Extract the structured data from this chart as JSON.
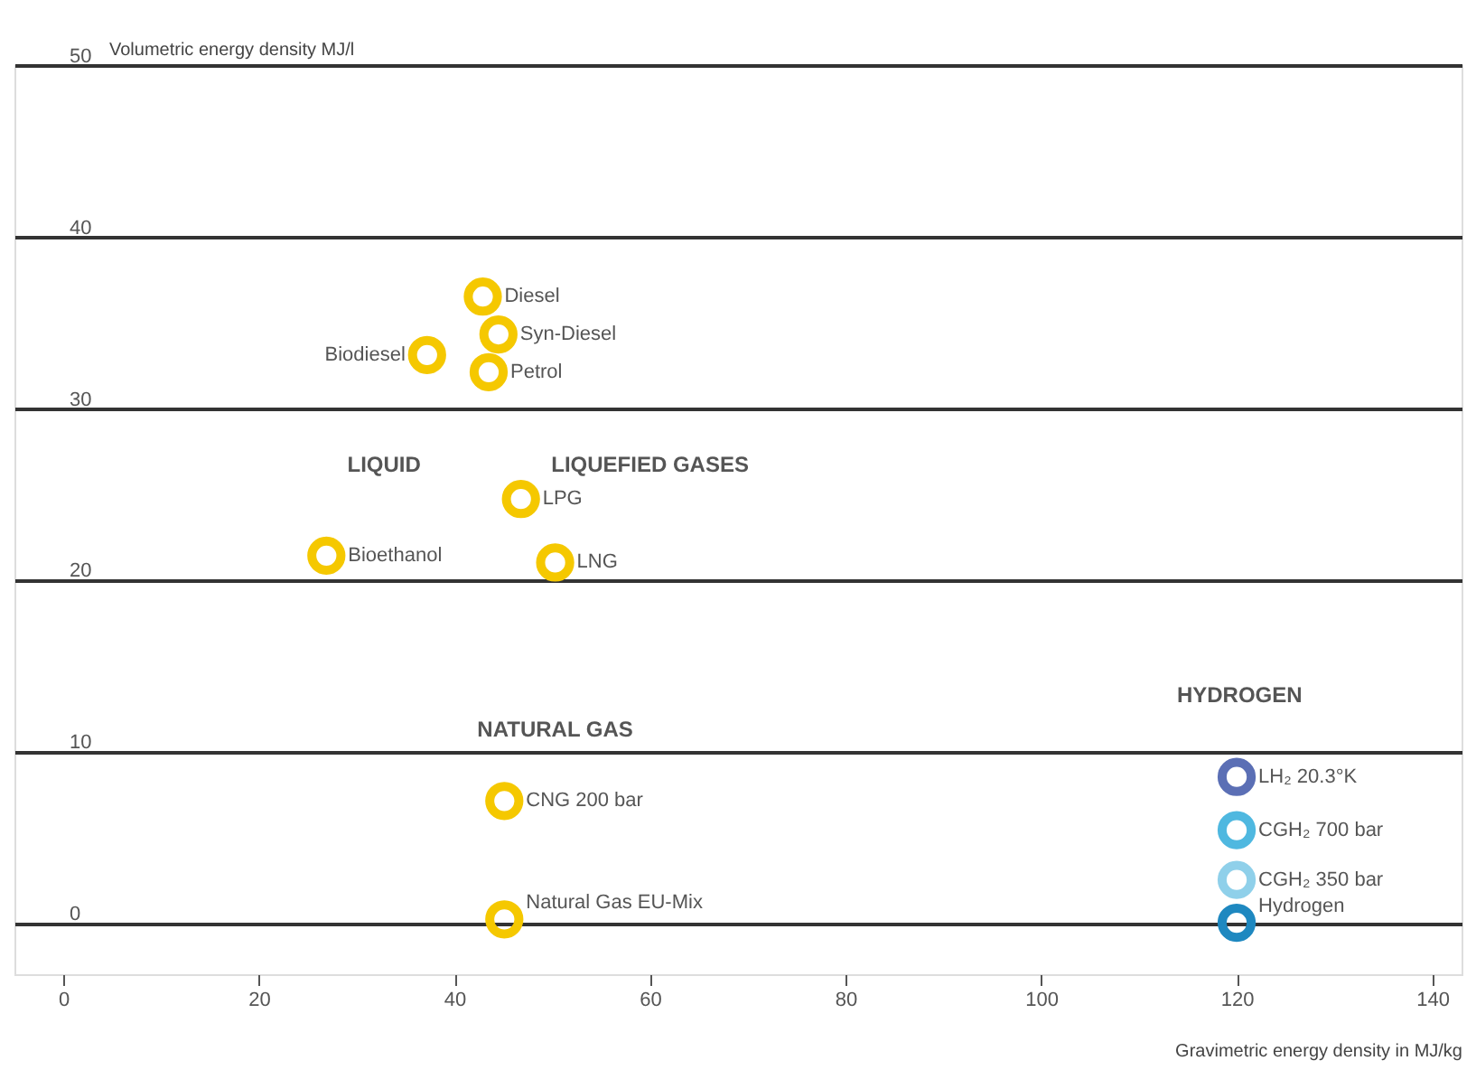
{
  "chart_data": {
    "type": "scatter",
    "xlabel": "Gravimetric energy density in MJ/kg",
    "ylabel": "Volumetric energy density MJ/l",
    "xlim": [
      -5,
      143
    ],
    "ylim": [
      -3,
      50
    ],
    "xticks": [
      0,
      20,
      40,
      60,
      80,
      100,
      120,
      140
    ],
    "yticks": [
      0,
      10,
      20,
      30,
      40,
      50
    ],
    "grid": "y",
    "marker": "circle",
    "series": [
      {
        "name": "Diesel",
        "color": "#f5c800",
        "x": [
          42.9
        ],
        "values": [
          36.5
        ]
      },
      {
        "name": "Syn-Diesel",
        "color": "#f5c800",
        "x": [
          44.5
        ],
        "values": [
          34.3
        ]
      },
      {
        "name": "Petrol",
        "color": "#f5c800",
        "x": [
          43.5
        ],
        "values": [
          32.1
        ]
      },
      {
        "name": "Biodiesel",
        "color": "#f5c800",
        "x": [
          37.2
        ],
        "values": [
          33.1
        ]
      },
      {
        "name": "Bioethanol",
        "color": "#f5c800",
        "x": [
          26.9
        ],
        "values": [
          21.4
        ]
      },
      {
        "name": "LPG",
        "color": "#f5c800",
        "x": [
          46.8
        ],
        "values": [
          24.7
        ]
      },
      {
        "name": "LNG",
        "color": "#f5c800",
        "x": [
          50.3
        ],
        "values": [
          21.0
        ]
      },
      {
        "name": "CNG 200 bar",
        "color": "#f5c800",
        "x": [
          45.1
        ],
        "values": [
          7.1
        ]
      },
      {
        "name": "Natural Gas EU-Mix",
        "color": "#f5c800",
        "x": [
          45.1
        ],
        "values": [
          0.2
        ]
      },
      {
        "name": "LH₂ 20.3°K",
        "color": "#5b6fb5",
        "x": [
          120
        ],
        "values": [
          8.5
        ]
      },
      {
        "name": "CGH₂ 700 bar",
        "color": "#4fb8e0",
        "x": [
          120
        ],
        "values": [
          5.4
        ]
      },
      {
        "name": "CGH₂ 350 bar",
        "color": "#8fd0ea",
        "x": [
          120
        ],
        "values": [
          2.5
        ]
      },
      {
        "name": "Hydrogen",
        "color": "#1e88c0",
        "x": [
          120
        ],
        "values": [
          0
        ]
      }
    ],
    "annotations": [
      "LIQUID",
      "LIQUEFIED GASES",
      "NATURAL GAS",
      "HYDROGEN"
    ]
  }
}
